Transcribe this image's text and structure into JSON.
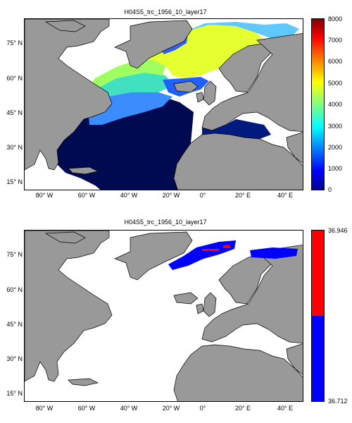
{
  "panels": [
    {
      "title": "H04S5_trc_1956_10_layer17",
      "colorbar": {
        "colormap": "jet",
        "ticks": [
          "8000",
          "7000",
          "6000",
          "5000",
          "4000",
          "3000",
          "2000",
          "1000",
          "0"
        ],
        "range": [
          0,
          8000
        ]
      }
    },
    {
      "title": "H04S5_trc_1956_10_layer17",
      "colorbar": {
        "colormap": "red-blue",
        "ticks": [
          "36.946",
          "36.712"
        ],
        "colors": [
          "#ff0000",
          "#0000ff"
        ],
        "range": [
          36.712,
          36.946
        ]
      }
    }
  ],
  "lat_labels": [
    "75° N",
    "60° N",
    "45° N",
    "30° N",
    "15° N"
  ],
  "lon_labels": [
    "80° W",
    "60° W",
    "40° W",
    "20° W",
    "0°",
    "20° E",
    "40° E"
  ],
  "colors": {
    "land": "#999999",
    "ocean_deep": "#000a50",
    "nodata": "#ffffff"
  }
}
